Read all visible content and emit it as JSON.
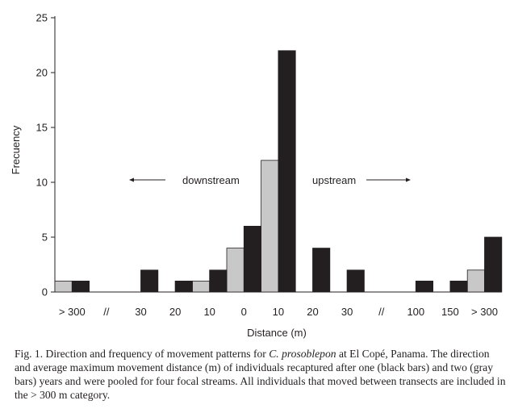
{
  "chart_data": {
    "type": "bar",
    "categories": [
      "> 300",
      "//",
      "30",
      "20",
      "10",
      "0",
      "10",
      "20",
      "30",
      "//",
      "100",
      "150",
      "> 300"
    ],
    "series": [
      {
        "name": "gray bars",
        "color": "#c8c8c8",
        "values": [
          1,
          0,
          0,
          0,
          1,
          4,
          12,
          0,
          0,
          0,
          0,
          0,
          2
        ]
      },
      {
        "name": "black bars",
        "color": "#231f20",
        "values": [
          1,
          0,
          2,
          1,
          2,
          6,
          22,
          4,
          2,
          0,
          1,
          1,
          5
        ]
      }
    ],
    "xlabel": "Distance (m)",
    "ylabel": "Frecuency",
    "ylim": [
      0,
      25
    ],
    "yticks": [
      "0",
      "5",
      "10",
      "15",
      "20",
      "25"
    ],
    "grid": false,
    "annotations": {
      "downstream": "downstream",
      "upstream": "upstream"
    }
  },
  "caption": {
    "part1": "Fig. 1. Direction and frequency of movement patterns for ",
    "species": "C. prosoblepon",
    "part2": " at El Copé, Panama. The direction and average maximum movement distance (m) of individuals recaptured after one (black bars) and two (gray bars) years and were pooled for four focal streams. All individuals that moved between transects are included in the > 300 m category."
  }
}
